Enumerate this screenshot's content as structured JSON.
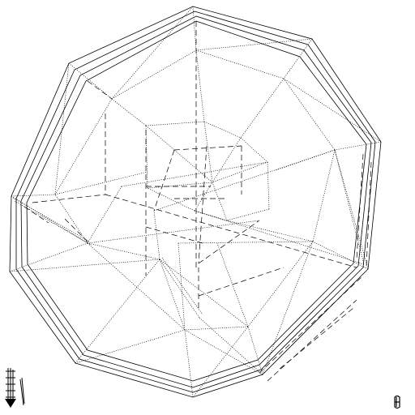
{
  "viewport": {
    "background": "#ffffff",
    "line_color": "#000000",
    "render_style": "hidden-line wireframe"
  },
  "model": {
    "shape": "decagonal shell",
    "outline_layers": 4,
    "hidden_edge_style": "dashed",
    "visible_edge_style": "dotted"
  },
  "overlay": {
    "axis_triad_icon": "view-axis-triad",
    "corner_marker_icon": "glyph-marker"
  }
}
